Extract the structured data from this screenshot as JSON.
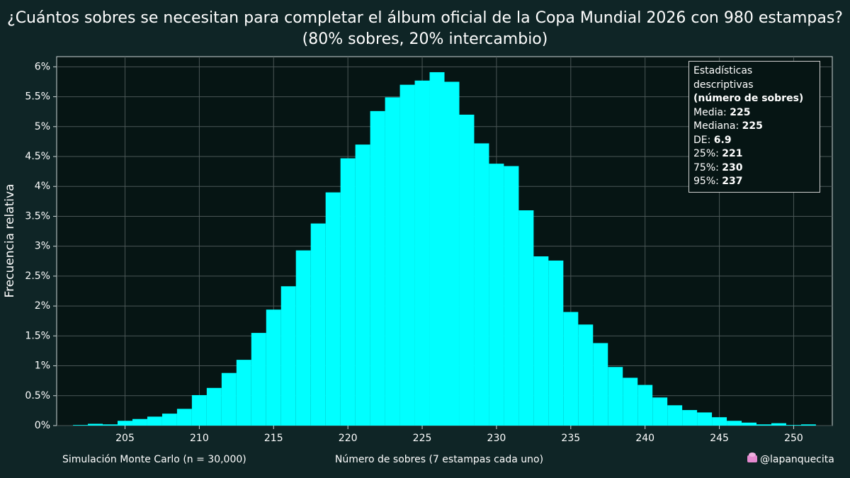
{
  "chart_data": {
    "type": "histogram",
    "title": "¿Cuántos sobres se necesitan para completar el álbum oficial de la Copa Mundial 2026 con 980 estampas?",
    "subtitle": "(80% sobres, 20% intercambio)",
    "x_label": "Número de sobres (7 estampas cada uno)",
    "y_label": "Frecuencia relativa",
    "footer_left": "Simulación Monte Carlo (n = 30,000)",
    "footer_right": "@lapanquecita",
    "color": "#00ffff",
    "grid": true,
    "bins": [
      201.5,
      202.5,
      203.5,
      204.5,
      205.5,
      206.5,
      207.5,
      208.5,
      209.5,
      210.5,
      211.5,
      212.5,
      213.5,
      214.5,
      215.5,
      216.5,
      217.5,
      218.5,
      219.5,
      220.5,
      221.5,
      222.5,
      223.5,
      224.5,
      225.5,
      226.5,
      227.5,
      228.5,
      229.5,
      230.5,
      231.5,
      232.5,
      233.5,
      234.5,
      235.5,
      236.5,
      237.5,
      238.5,
      239.5,
      240.5,
      241.5,
      242.5,
      243.5,
      244.5,
      245.5,
      246.5,
      247.5,
      248.5,
      249.5,
      250.5,
      251.5
    ],
    "values": [
      0.01,
      0.03,
      0.02,
      0.08,
      0.11,
      0.15,
      0.2,
      0.28,
      0.51,
      0.63,
      0.88,
      1.1,
      1.55,
      1.94,
      2.33,
      2.93,
      3.38,
      3.9,
      4.47,
      4.7,
      5.26,
      5.49,
      5.7,
      5.77,
      5.91,
      5.75,
      5.2,
      4.72,
      4.38,
      4.34,
      3.6,
      2.83,
      2.76,
      1.9,
      1.69,
      1.38,
      0.98,
      0.8,
      0.68,
      0.47,
      0.34,
      0.26,
      0.22,
      0.14,
      0.08,
      0.05,
      0.02,
      0.04,
      0.01,
      0.02
    ],
    "xlim": [
      200.4,
      252.6
    ],
    "xticks": [
      205,
      210,
      215,
      220,
      225,
      230,
      235,
      240,
      245,
      250
    ],
    "ylim": [
      0,
      6.17
    ],
    "yticks": [
      {
        "value": 0,
        "label": "0%"
      },
      {
        "value": 0.5,
        "label": "0.5%"
      },
      {
        "value": 1,
        "label": "1%"
      },
      {
        "value": 1.5,
        "label": "1.5%"
      },
      {
        "value": 2,
        "label": "2%"
      },
      {
        "value": 2.5,
        "label": "2.5%"
      },
      {
        "value": 3,
        "label": "3%"
      },
      {
        "value": 3.5,
        "label": "3.5%"
      },
      {
        "value": 4,
        "label": "4%"
      },
      {
        "value": 4.5,
        "label": "4.5%"
      },
      {
        "value": 5,
        "label": "5%"
      },
      {
        "value": 5.5,
        "label": "5.5%"
      },
      {
        "value": 6,
        "label": "6%"
      }
    ],
    "stats": {
      "title": "Estadísticas descriptivas",
      "subtitle": "(número de sobres)",
      "items": [
        {
          "label": "Media:",
          "value": 225
        },
        {
          "label": "Mediana:",
          "value": 225
        },
        {
          "label": "DE:",
          "value": 6.9
        },
        {
          "label": "25%:",
          "value": 221
        },
        {
          "label": "75%:",
          "value": 230
        },
        {
          "label": "95%:",
          "value": 237
        }
      ]
    }
  }
}
